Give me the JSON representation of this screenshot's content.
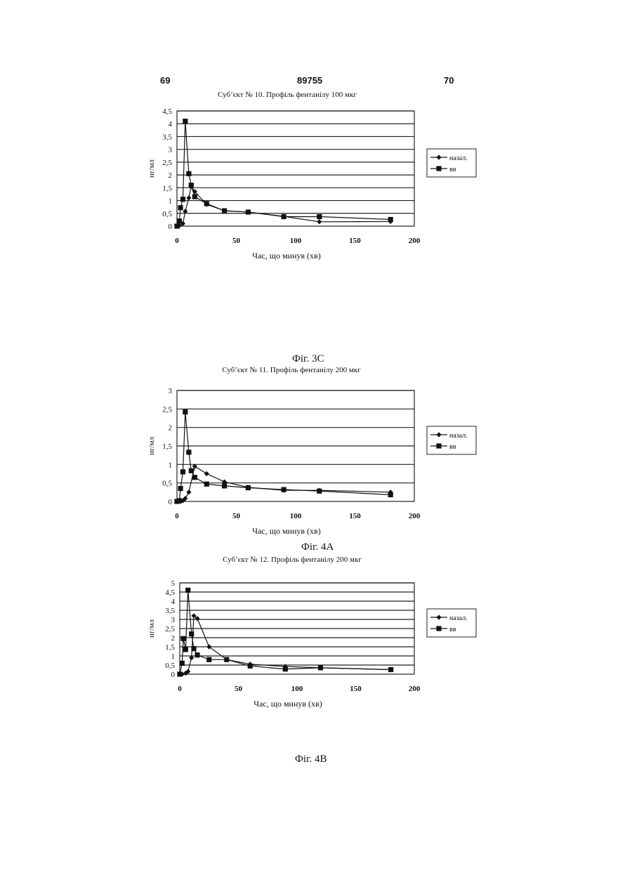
{
  "header": {
    "left_page": "69",
    "patent_number": "89755",
    "right_page": "70"
  },
  "figures": {
    "fig_3c": "Фіг. 3С",
    "fig_4a": "Фіг. 4А",
    "fig_4b": "Фіг. 4В"
  },
  "chart_data": [
    {
      "type": "line",
      "title": "Суб’єкт № 10. Профіль фентанілу 100 мкг",
      "xlabel": "Час, що минув (хв)",
      "ylabel": "нг/мл",
      "xlim": [
        0,
        200
      ],
      "ylim": [
        0,
        4.5
      ],
      "xticks": [
        "0",
        "50",
        "100",
        "150",
        "200"
      ],
      "yticks": [
        "0",
        "0,5",
        "1",
        "1,5",
        "2",
        "2,5",
        "3",
        "3,5",
        "4",
        "4,5"
      ],
      "grid": "horizontal",
      "legend_position": "right",
      "series": [
        {
          "name": "назал.",
          "marker": "diamond",
          "x": [
            0,
            2,
            5,
            7,
            10,
            12,
            15,
            25,
            40,
            60,
            90,
            120,
            180
          ],
          "y": [
            0,
            0.02,
            0.1,
            0.58,
            1.1,
            1.55,
            1.35,
            0.85,
            0.6,
            0.55,
            0.38,
            0.17,
            0.18
          ]
        },
        {
          "name": "вв",
          "marker": "square",
          "x": [
            0,
            2,
            3,
            5,
            7,
            10,
            12,
            15,
            25,
            40,
            60,
            90,
            120,
            180
          ],
          "y": [
            0,
            0.2,
            0.72,
            1.05,
            4.1,
            2.05,
            1.6,
            1.15,
            0.88,
            0.6,
            0.55,
            0.37,
            0.37,
            0.26
          ]
        }
      ]
    },
    {
      "type": "line",
      "title": "Суб’єкт № 11. Профіль фентанілу 200 мкг",
      "xlabel": "Час, що минув (хв)",
      "ylabel": "нг/мл",
      "xlim": [
        0,
        200
      ],
      "ylim": [
        0,
        3
      ],
      "xticks": [
        "0",
        "50",
        "100",
        "150",
        "200"
      ],
      "yticks": [
        "0",
        "0,5",
        "1",
        "1,5",
        "2",
        "2,5",
        "3"
      ],
      "grid": "horizontal",
      "legend_position": "right",
      "series": [
        {
          "name": "назал.",
          "marker": "diamond",
          "x": [
            0,
            3,
            5,
            7,
            10,
            15,
            25,
            40,
            60,
            90,
            120,
            180
          ],
          "y": [
            0,
            0,
            0.02,
            0.08,
            0.25,
            0.95,
            0.75,
            0.53,
            0.38,
            0.3,
            0.3,
            0.25
          ]
        },
        {
          "name": "вв",
          "marker": "square",
          "x": [
            0,
            2,
            3,
            5,
            7,
            10,
            12,
            15,
            25,
            40,
            60,
            90,
            120,
            180
          ],
          "y": [
            0,
            0.02,
            0.35,
            0.8,
            2.42,
            1.33,
            0.83,
            0.65,
            0.47,
            0.42,
            0.37,
            0.32,
            0.28,
            0.18
          ]
        }
      ]
    },
    {
      "type": "line",
      "title": "Суб’єкт № 12. Профіль фентанілу 200 мкг",
      "xlabel": "Час, що минув (хв)",
      "ylabel": "нг/мл",
      "xlim": [
        0,
        200
      ],
      "ylim": [
        0,
        5
      ],
      "xticks": [
        "0",
        "50",
        "100",
        "150",
        "200"
      ],
      "yticks": [
        "0",
        "0,5",
        "1",
        "1,5",
        "2",
        "2,5",
        "3",
        "3,5",
        "4",
        "4,5",
        "5"
      ],
      "grid": "horizontal",
      "legend_position": "right",
      "series": [
        {
          "name": "назал.",
          "marker": "diamond",
          "x": [
            0,
            2,
            5,
            7,
            10,
            12,
            15,
            25,
            40,
            60,
            90,
            120,
            180
          ],
          "y": [
            0,
            0,
            0.05,
            0.15,
            0.9,
            3.2,
            3.05,
            1.5,
            0.8,
            0.55,
            0.42,
            0.35,
            0.25
          ]
        },
        {
          "name": "вв",
          "marker": "square",
          "x": [
            0,
            2,
            3,
            5,
            7,
            10,
            12,
            15,
            25,
            40,
            60,
            90,
            120,
            180
          ],
          "y": [
            0,
            0.6,
            1.95,
            1.35,
            4.6,
            2.2,
            1.4,
            1.05,
            0.8,
            0.8,
            0.45,
            0.28,
            0.35,
            0.25
          ]
        }
      ]
    }
  ]
}
